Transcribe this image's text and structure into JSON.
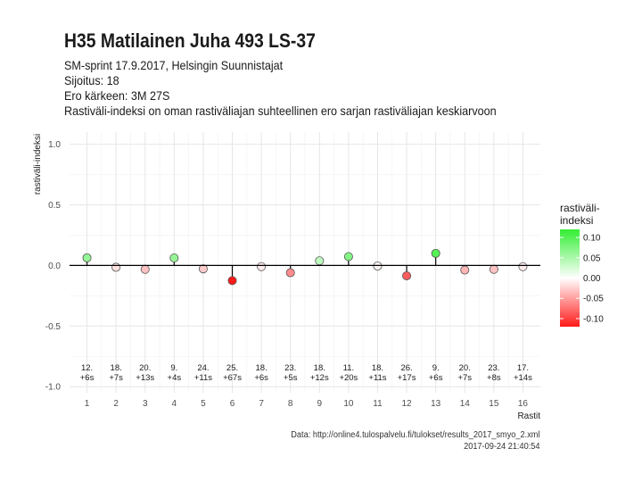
{
  "header": {
    "title": "H35 Matilainen Juha 493 LS-37",
    "subtitle_lines": [
      "SM-sprint 17.9.2017, Helsingin Suunnistajat",
      "Sijoitus: 18",
      "Ero kärkeen: 3M 27S",
      "Rastiväli-indeksi on oman rastiväliajan suhteellinen ero sarjan rastiväliajan keskiarvoon"
    ]
  },
  "caption": {
    "source": "Data: http://online4.tulospalvelu.fi/tulokset/results_2017_smyo_2.xml",
    "timestamp": "2017-09-24 21:40:54"
  },
  "colors": {
    "negative": "#ff1a1a",
    "neutral": "#ffffff",
    "positive": "#33ee33",
    "grid": "#e6e6e6",
    "zero_line": "#000000"
  },
  "chart_data": {
    "type": "scatter",
    "style": "lollipop",
    "title": "H35 Matilainen Juha 493 LS-37",
    "xlabel": "Rastit",
    "ylabel": "rastiväli-indeksi",
    "x": [
      1,
      2,
      3,
      4,
      5,
      6,
      7,
      8,
      9,
      10,
      11,
      12,
      13,
      14,
      15,
      16
    ],
    "values": [
      0.063,
      -0.015,
      -0.032,
      0.062,
      -0.028,
      -0.125,
      -0.01,
      -0.06,
      0.038,
      0.073,
      -0.005,
      -0.085,
      0.1,
      -0.038,
      -0.032,
      -0.01
    ],
    "point_labels": [
      [
        "12.",
        "+6s"
      ],
      [
        "18.",
        "+7s"
      ],
      [
        "20.",
        "+13s"
      ],
      [
        "9.",
        "+4s"
      ],
      [
        "24.",
        "+11s"
      ],
      [
        "25.",
        "+67s"
      ],
      [
        "18.",
        "+6s"
      ],
      [
        "23.",
        "+5s"
      ],
      [
        "18.",
        "+12s"
      ],
      [
        "11.",
        "+20s"
      ],
      [
        "18.",
        "+11s"
      ],
      [
        "26.",
        "+17s"
      ],
      [
        "9.",
        "+6s"
      ],
      [
        "20.",
        "+7s"
      ],
      [
        "23.",
        "+8s"
      ],
      [
        "17.",
        "+14s"
      ]
    ],
    "ylim": [
      -1.05,
      1.1
    ],
    "xlim": [
      0.4,
      16.6
    ],
    "y_ticks": [
      -1.0,
      -0.5,
      0.0,
      0.5,
      1.0
    ],
    "y_tick_labels": [
      "-1.0",
      "-0.5",
      "0.0",
      "0.5",
      "1.0"
    ],
    "x_tick_labels": [
      "1",
      "2",
      "3",
      "4",
      "5",
      "6",
      "7",
      "8",
      "9",
      "10",
      "11",
      "12",
      "13",
      "14",
      "15",
      "16"
    ],
    "grid": true,
    "legend": {
      "title_lines": [
        "rastiväli-",
        "indeksi"
      ],
      "placement": "right",
      "range": [
        -0.12,
        0.12
      ],
      "tick_values": [
        0.1,
        0.05,
        0.0,
        -0.05,
        -0.1
      ],
      "tick_labels": [
        "0.10",
        "0.05",
        "0.00",
        "-0.05",
        "-0.10"
      ]
    }
  }
}
